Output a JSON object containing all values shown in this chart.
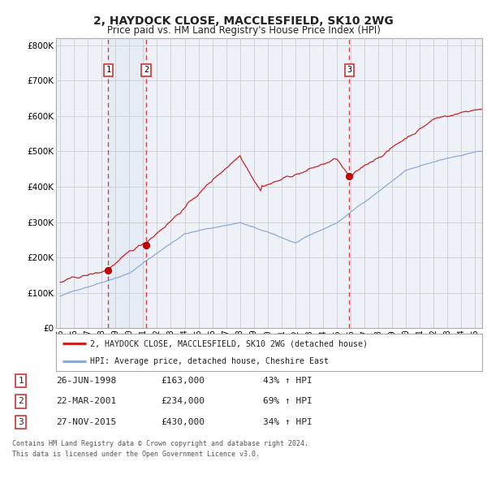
{
  "title": "2, HAYDOCK CLOSE, MACCLESFIELD, SK10 2WG",
  "subtitle": "Price paid vs. HM Land Registry's House Price Index (HPI)",
  "ytick_values": [
    0,
    100000,
    200000,
    300000,
    400000,
    500000,
    600000,
    700000,
    800000
  ],
  "ylim": [
    0,
    820000
  ],
  "xlim_start": 1994.7,
  "xlim_end": 2025.5,
  "sale_dates": [
    1998.48,
    2001.22,
    2015.9
  ],
  "sale_prices": [
    163000,
    234000,
    430000
  ],
  "sale_labels": [
    "1",
    "2",
    "3"
  ],
  "vline_color": "#cc3333",
  "shade_color": "#dde8f5",
  "sale_marker_color": "#cc0000",
  "legend_entries": [
    "2, HAYDOCK CLOSE, MACCLESFIELD, SK10 2WG (detached house)",
    "HPI: Average price, detached house, Cheshire East"
  ],
  "table_data": [
    [
      "1",
      "26-JUN-1998",
      "£163,000",
      "43% ↑ HPI"
    ],
    [
      "2",
      "22-MAR-2001",
      "£234,000",
      "69% ↑ HPI"
    ],
    [
      "3",
      "27-NOV-2015",
      "£430,000",
      "34% ↑ HPI"
    ]
  ],
  "footnote1": "Contains HM Land Registry data © Crown copyright and database right 2024.",
  "footnote2": "This data is licensed under the Open Government Licence v3.0.",
  "hpi_line_color": "#88aadd",
  "price_line_color": "#cc2222",
  "grid_color": "#cccccc",
  "bg_color": "#ffffff",
  "plot_bg_color": "#eef2f8"
}
